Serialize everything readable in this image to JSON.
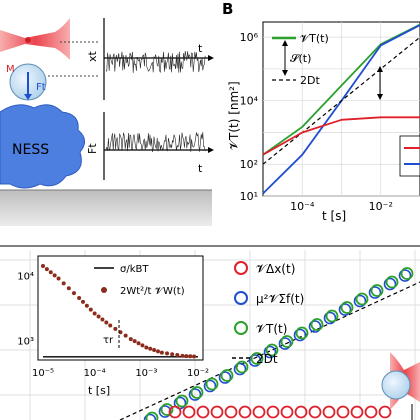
{
  "panelB": {
    "letter": "B",
    "ylabel": "𝓥T(t) [nm²]",
    "xlabel": "t [s]",
    "yticks": [
      "10⁶",
      "10⁴",
      "10²",
      "10¹"
    ],
    "xticks": [
      "10⁻⁴",
      "10⁻²"
    ],
    "legend": {
      "green": "𝓥T(t)",
      "s": "𝓢(t)",
      "dashed": "2Dt"
    },
    "colors": {
      "green": "#2ca02c",
      "blue": "#1f4fd0",
      "red": "#e0202a",
      "dashed": "#000000"
    }
  },
  "panelA": {
    "xt_label": "xt",
    "ft_label": "Ft",
    "t_label1": "t",
    "t_label2": "t",
    "blob_text": "NESS",
    "m_label": "M",
    "f_label": "Ft"
  },
  "panelC": {
    "inset": {
      "yticks": [
        "10⁴",
        "10³"
      ],
      "xticks": [
        "10⁻⁵",
        "10⁻⁴",
        "10⁻³",
        "10⁻²"
      ],
      "xlabel": "t [s]",
      "tau_label": "τr",
      "legend_line": "σ/kBT",
      "legend_dots": "2Wt²/t 𝓥W(t)"
    },
    "legend": [
      {
        "label": "𝓥Δx(t)",
        "color": "#e0202a"
      },
      {
        "label": "μ²𝓥Σf(t)",
        "color": "#1f4fd0"
      },
      {
        "label": "𝓥T(t)",
        "color": "#2ca02c"
      },
      {
        "label": "2Dt",
        "color": "#000000",
        "dashed": true
      }
    ]
  },
  "chart_data": [
    {
      "type": "line",
      "title": "",
      "xlabel": "t [s]",
      "ylabel": "𝓥T(t) [nm²]",
      "xscale": "log",
      "yscale": "log",
      "xlim": [
        1e-05,
        0.1
      ],
      "ylim": [
        10,
        3000000
      ],
      "series": [
        {
          "name": "𝓥T(t)",
          "color": "#2ca02c",
          "x": [
            1e-05,
            0.0001,
            0.001,
            0.01,
            0.1
          ],
          "y": [
            200,
            1500,
            30000,
            600000,
            2500000
          ]
        },
        {
          "name": "",
          "color": "#1f4fd0",
          "x": [
            1e-05,
            0.0001,
            0.001,
            0.01,
            0.1
          ],
          "y": [
            12,
            200,
            10000,
            550000,
            2400000
          ]
        },
        {
          "name": "2Dt",
          "color": "#000000",
          "dashed": true,
          "x": [
            1e-05,
            0.0001,
            0.001,
            0.01,
            0.1
          ],
          "y": [
            100,
            1000,
            10000,
            100000,
            1000000
          ]
        },
        {
          "name": "",
          "color": "#e0202a",
          "x": [
            1e-05,
            0.0001,
            0.001,
            0.01,
            0.1
          ],
          "y": [
            200,
            1000,
            2500,
            3000,
            3000
          ]
        }
      ]
    },
    {
      "type": "line",
      "title": "",
      "xlabel": "t [s]",
      "ylabel": "",
      "xscale": "log",
      "yscale": "log",
      "xlim": [
        1e-05,
        0.01
      ],
      "ylim": [
        500,
        20000
      ],
      "series": [
        {
          "name": "σ/kBT",
          "color": "#000000",
          "x": [
            1e-05,
            0.01
          ],
          "y": [
            560,
            560
          ]
        },
        {
          "name": "2Wt²/t 𝓥W(t)",
          "color": "#8b2c1c",
          "x": [
            1e-05,
            2e-05,
            5e-05,
            0.0001,
            0.0002,
            0.0005,
            0.001,
            0.002,
            0.005,
            0.01
          ],
          "y": [
            14000,
            9000,
            4500,
            2600,
            1700,
            1050,
            780,
            650,
            580,
            560
          ]
        }
      ]
    }
  ]
}
